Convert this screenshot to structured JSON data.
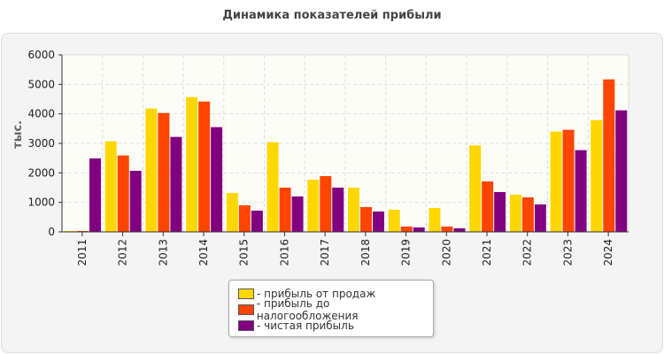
{
  "chart_data": {
    "type": "bar",
    "title": "Динамика показателей прибыли",
    "ylabel": "тыс.",
    "xlabel": "",
    "ylim": [
      0,
      6000
    ],
    "yticks": [
      0,
      1000,
      2000,
      3000,
      4000,
      5000,
      6000
    ],
    "grid": true,
    "legend_position": "bottom",
    "categories": [
      "2011",
      "2012",
      "2013",
      "2014",
      "2015",
      "2016",
      "2017",
      "2018",
      "2019",
      "2020",
      "2021",
      "2022",
      "2023",
      "2024"
    ],
    "series": [
      {
        "name": "- прибыль от продаж",
        "color": "#ffd700",
        "values": [
          30,
          3070,
          4180,
          4570,
          1320,
          3040,
          1770,
          1500,
          750,
          810,
          2930,
          1260,
          3400,
          3790
        ]
      },
      {
        "name": "- прибыль до налогообложения",
        "color": "#ff4500",
        "values": [
          30,
          2590,
          4030,
          4420,
          900,
          1500,
          1890,
          840,
          180,
          180,
          1710,
          1170,
          3460,
          5170
        ]
      },
      {
        "name": "- чистая прибыль",
        "color": "#800080",
        "values": [
          2490,
          2070,
          3220,
          3550,
          720,
          1200,
          1500,
          690,
          150,
          120,
          1350,
          930,
          2770,
          4120
        ]
      }
    ]
  }
}
